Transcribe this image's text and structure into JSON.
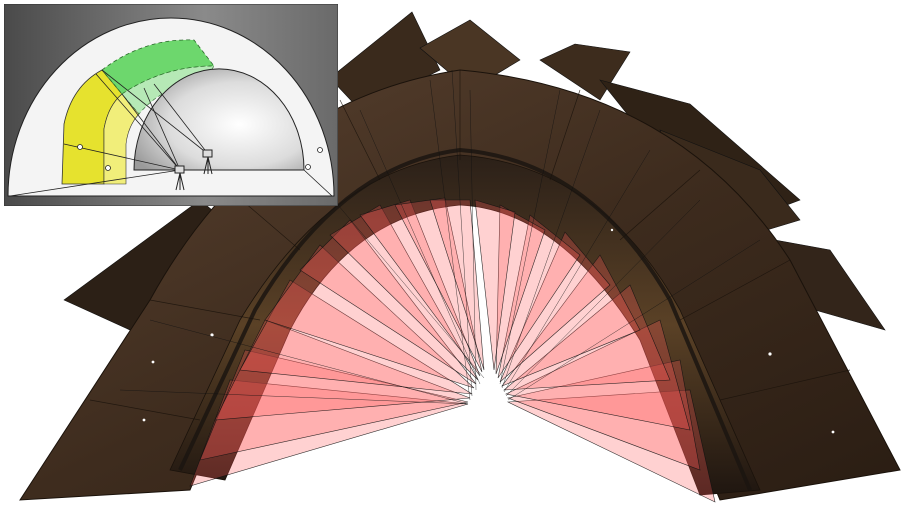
{
  "figure": {
    "description_kind": "photogrammetry-arch-reconstruction",
    "colors": {
      "background": "#ffffff",
      "arch_fill": "#3b2a1c",
      "arch_band": "#4a3522",
      "camera_frustum": "#ff6a6a",
      "camera_frustum_edge": "#111111",
      "inset_bg_dark": "#5a5a5a",
      "inset_bg_light": "#f2f2f2",
      "inset_yellow": "#e8e23a",
      "inset_green": "#5fd35f",
      "inset_line": "#222222"
    }
  },
  "inset": {
    "panel": "tunnel-cross-section-schematic"
  }
}
